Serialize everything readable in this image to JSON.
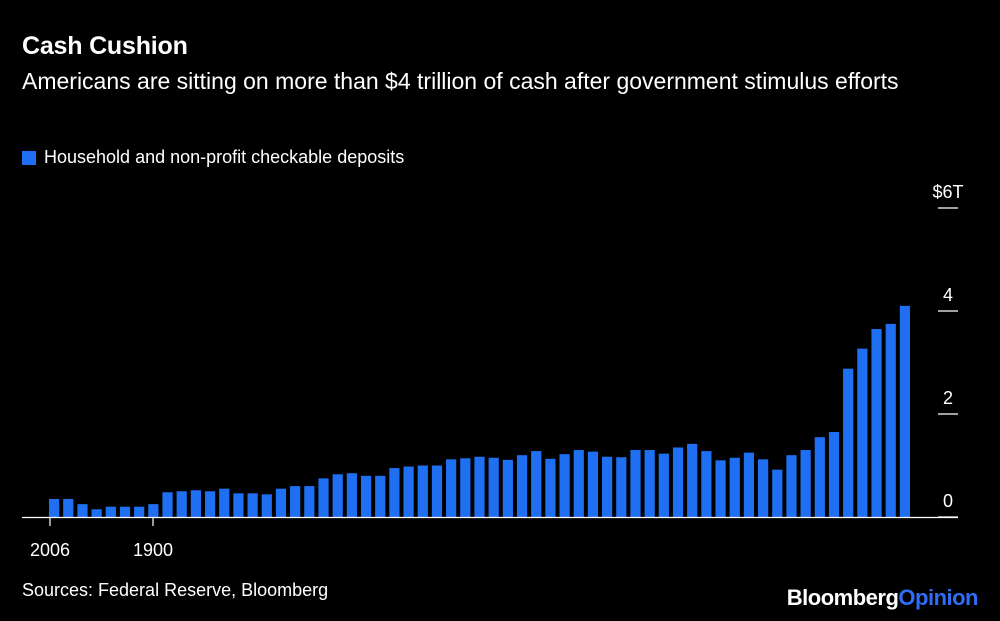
{
  "title": "Cash Cushion",
  "subtitle": "Americans are sitting on more than $4 trillion of cash after government stimulus efforts",
  "source": "Sources: Federal Reserve, Bloomberg",
  "brand": {
    "name": "Bloomberg",
    "suffix": "Opinion",
    "suffix_color": "#2f6df6"
  },
  "colors": {
    "background": "#000000",
    "bar": "#1f6ff2",
    "text": "#ffffff"
  },
  "chart_data": {
    "type": "bar",
    "legend": {
      "position": "top-left",
      "entries": [
        "Household and non-profit checkable deposits"
      ]
    },
    "series": [
      {
        "name": "Household and non-profit checkable deposits",
        "values": [
          0.35,
          0.35,
          0.25,
          0.15,
          0.2,
          0.2,
          0.2,
          0.25,
          0.48,
          0.5,
          0.52,
          0.5,
          0.55,
          0.46,
          0.46,
          0.44,
          0.55,
          0.6,
          0.6,
          0.75,
          0.83,
          0.85,
          0.8,
          0.8,
          0.95,
          0.98,
          1.0,
          1.0,
          1.12,
          1.14,
          1.17,
          1.15,
          1.11,
          1.2,
          1.28,
          1.13,
          1.22,
          1.3,
          1.27,
          1.17,
          1.16,
          1.3,
          1.3,
          1.23,
          1.35,
          1.42,
          1.28,
          1.1,
          1.15,
          1.25,
          1.12,
          0.92,
          1.2,
          1.3,
          1.55,
          1.65,
          2.88,
          3.27,
          3.65,
          3.75,
          4.1
        ]
      }
    ],
    "xticks": [
      "2006",
      "1900"
    ],
    "yticks": [
      {
        "value": 0,
        "label": "0"
      },
      {
        "value": 2,
        "label": "2"
      },
      {
        "value": 4,
        "label": "4"
      },
      {
        "value": 6,
        "label": "$6T"
      }
    ],
    "ylim": [
      0,
      6
    ],
    "grid": false
  }
}
